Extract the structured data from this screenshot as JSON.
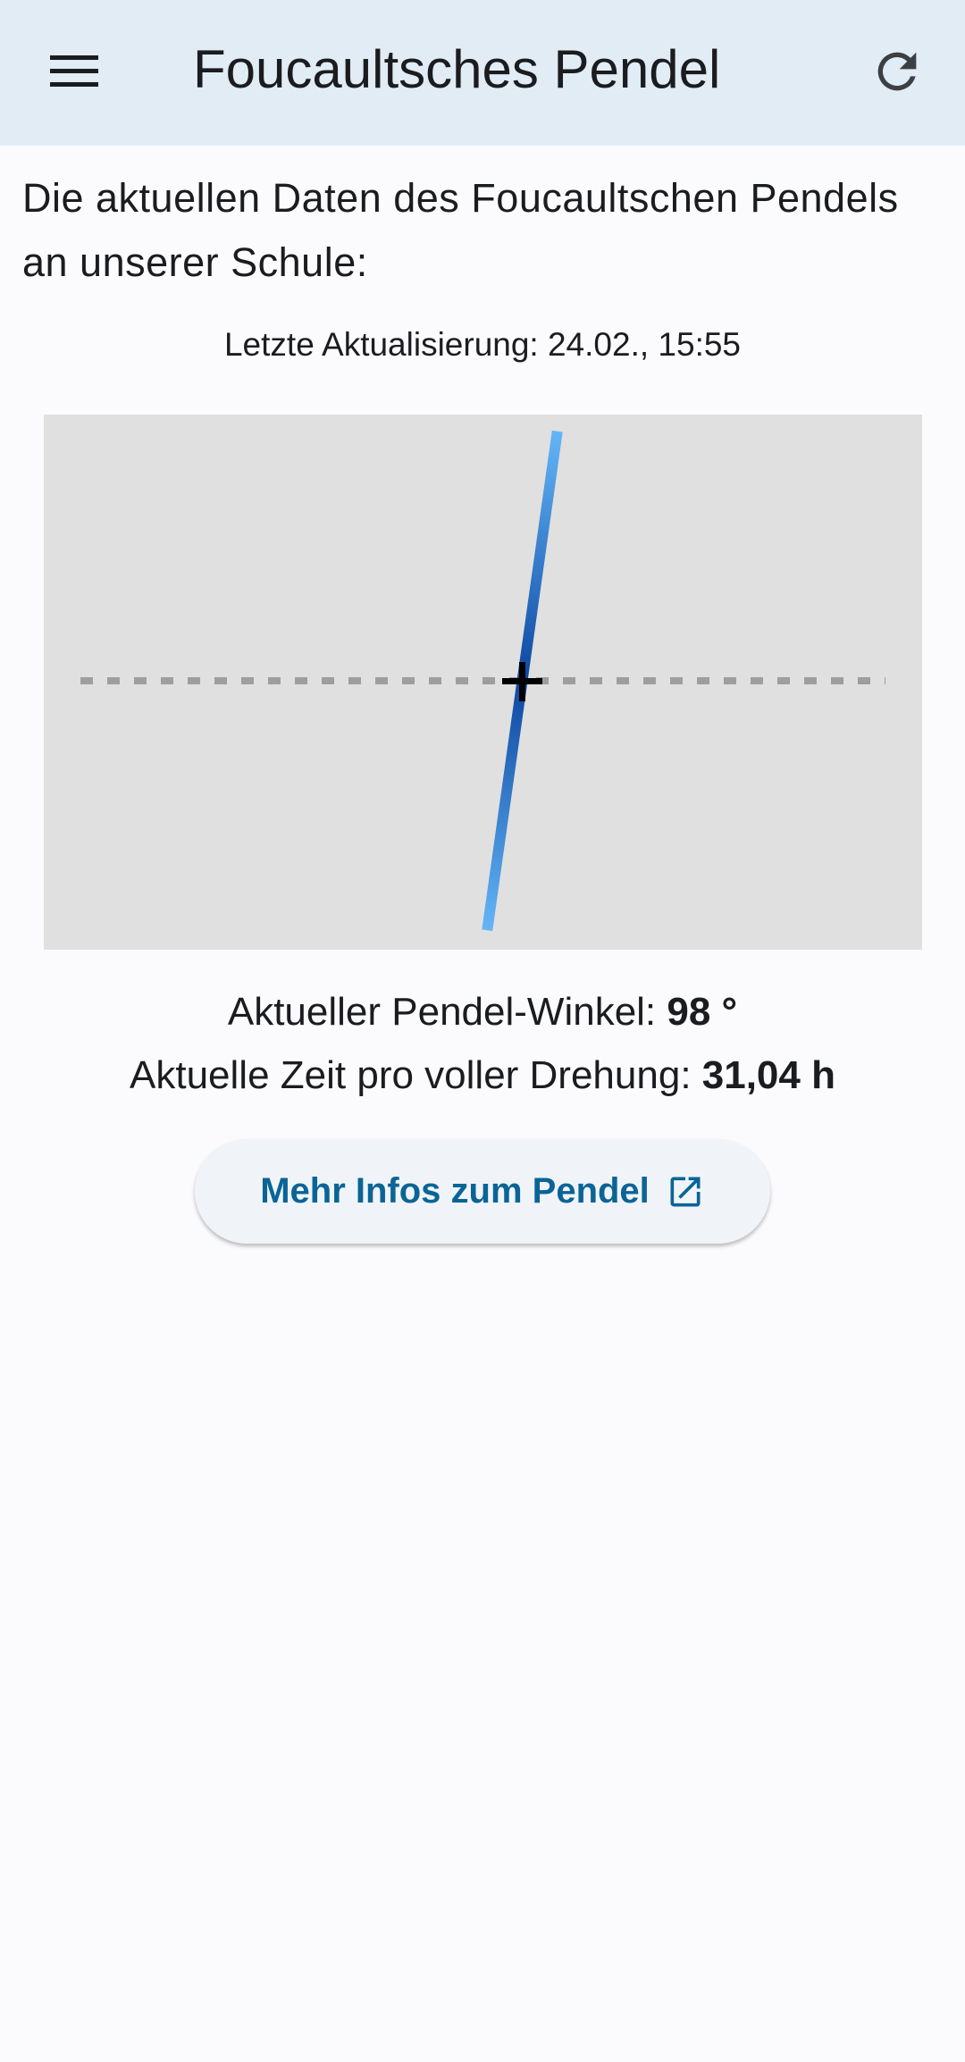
{
  "appbar": {
    "title": "Foucaultsches Pendel",
    "menu_icon": "menu-icon",
    "refresh_icon": "refresh-icon",
    "background": "#e1ecf5"
  },
  "intro": "Die aktuellen Daten des Foucaultschen Pendels an unserer Schule:",
  "last_update": "Letzte Aktualisierung: 24.02., 15:55",
  "pendulum": {
    "angle_deg": 98,
    "line_color_outer": "#64b5f6",
    "line_color_center": "#0d47a1"
  },
  "angle": {
    "label": "Aktueller Pendel-Winkel: ",
    "value": "98 °"
  },
  "rotation": {
    "label": "Aktuelle Zeit pro voller Drehung: ",
    "value": "31,04 h"
  },
  "button": {
    "label": "Mehr Infos zum Pendel",
    "icon": "open-in-new-icon",
    "color": "#0a6496"
  }
}
